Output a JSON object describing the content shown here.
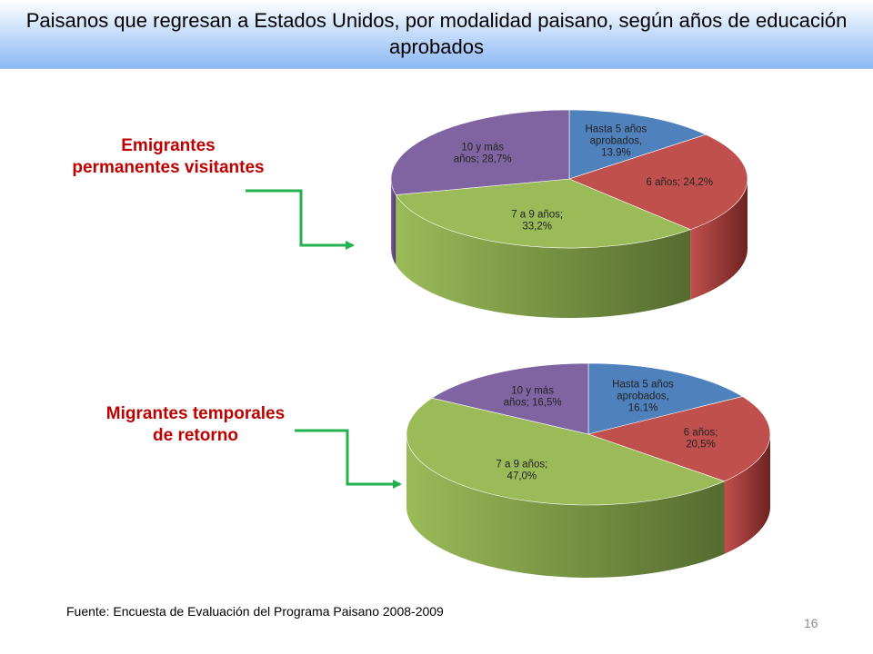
{
  "title": "Paisanos que regresan a Estados Unidos, por modalidad paisano, según años de educación aprobados",
  "groups": {
    "g1": {
      "line1": "Emigrantes",
      "line2": "permanentes visitantes"
    },
    "g2": {
      "line1": "Migrantes temporales",
      "line2": "de retorno"
    }
  },
  "source": "Fuente: Encuesta de Evaluación del Programa Paisano 2008-2009",
  "page_number": "16",
  "colors": {
    "arrow": "#22b14c",
    "group_label": "#c00000"
  },
  "chart_data": [
    {
      "type": "pie",
      "group": "Emigrantes permanentes visitantes",
      "slices": [
        {
          "label_lines": [
            "Hasta 5 años",
            "aprobados,",
            "13.9%"
          ],
          "value": 13.9,
          "color": "#4f81bd",
          "side": "#2c4d75"
        },
        {
          "label_lines": [
            "6 años; 24,2%"
          ],
          "value": 24.2,
          "color": "#c0504d",
          "side": "#6e2321"
        },
        {
          "label_lines": [
            "7 a 9 años;",
            "33,2%"
          ],
          "value": 33.2,
          "color": "#9bbb59",
          "side": "#556b2f"
        },
        {
          "label_lines": [
            "10 y más",
            "años; 28,7%"
          ],
          "value": 28.7,
          "color": "#8064a2",
          "side": "#4a3a60"
        }
      ]
    },
    {
      "type": "pie",
      "group": "Migrantes temporales de retorno",
      "slices": [
        {
          "label_lines": [
            "Hasta 5 años",
            "aprobados,",
            "16.1%"
          ],
          "value": 16.1,
          "color": "#4f81bd",
          "side": "#2c4d75"
        },
        {
          "label_lines": [
            "6 años;",
            "20,5%"
          ],
          "value": 20.5,
          "color": "#c0504d",
          "side": "#6e2321"
        },
        {
          "label_lines": [
            "7 a 9 años;",
            "47,0%"
          ],
          "value": 47.0,
          "color": "#9bbb59",
          "side": "#556b2f"
        },
        {
          "label_lines": [
            "10 y más",
            "años; 16,5%"
          ],
          "value": 16.5,
          "color": "#8064a2",
          "side": "#4a3a60"
        }
      ]
    }
  ]
}
